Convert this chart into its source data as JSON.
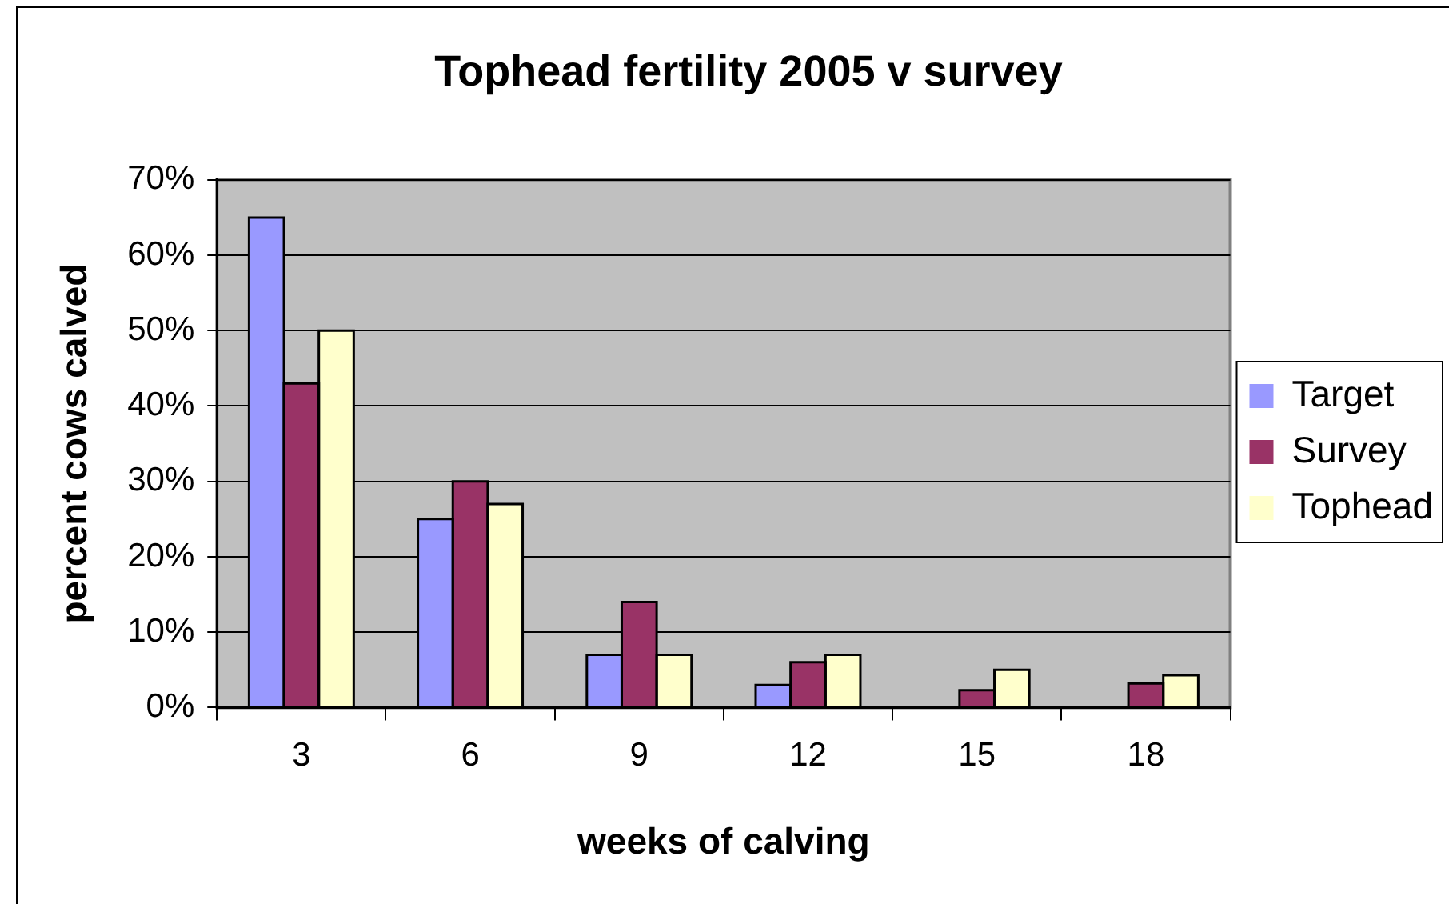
{
  "chart_data": {
    "type": "bar",
    "title": "Tophead fertility 2005 v survey",
    "xlabel": "weeks of calving",
    "ylabel": "percent cows calved",
    "categories": [
      "3",
      "6",
      "9",
      "12",
      "15",
      "18"
    ],
    "series": [
      {
        "name": "Target",
        "color": "#9999ff",
        "values": [
          65,
          25,
          7,
          3,
          0,
          0
        ]
      },
      {
        "name": "Survey",
        "color": "#993366",
        "values": [
          43,
          30,
          14,
          6,
          2.3,
          3.2
        ]
      },
      {
        "name": "Tophead",
        "color": "#ffffcc",
        "values": [
          50,
          27,
          7,
          7,
          5,
          4.3
        ]
      }
    ],
    "ylim": [
      0,
      70
    ],
    "yticks": [
      {
        "value": 0,
        "label": "0%"
      },
      {
        "value": 10,
        "label": "10%"
      },
      {
        "value": 20,
        "label": "20%"
      },
      {
        "value": 30,
        "label": "30%"
      },
      {
        "value": 40,
        "label": "40%"
      },
      {
        "value": 50,
        "label": "50%"
      },
      {
        "value": 60,
        "label": "60%"
      },
      {
        "value": 70,
        "label": "70%"
      }
    ],
    "grid": "y",
    "legend": "right"
  }
}
